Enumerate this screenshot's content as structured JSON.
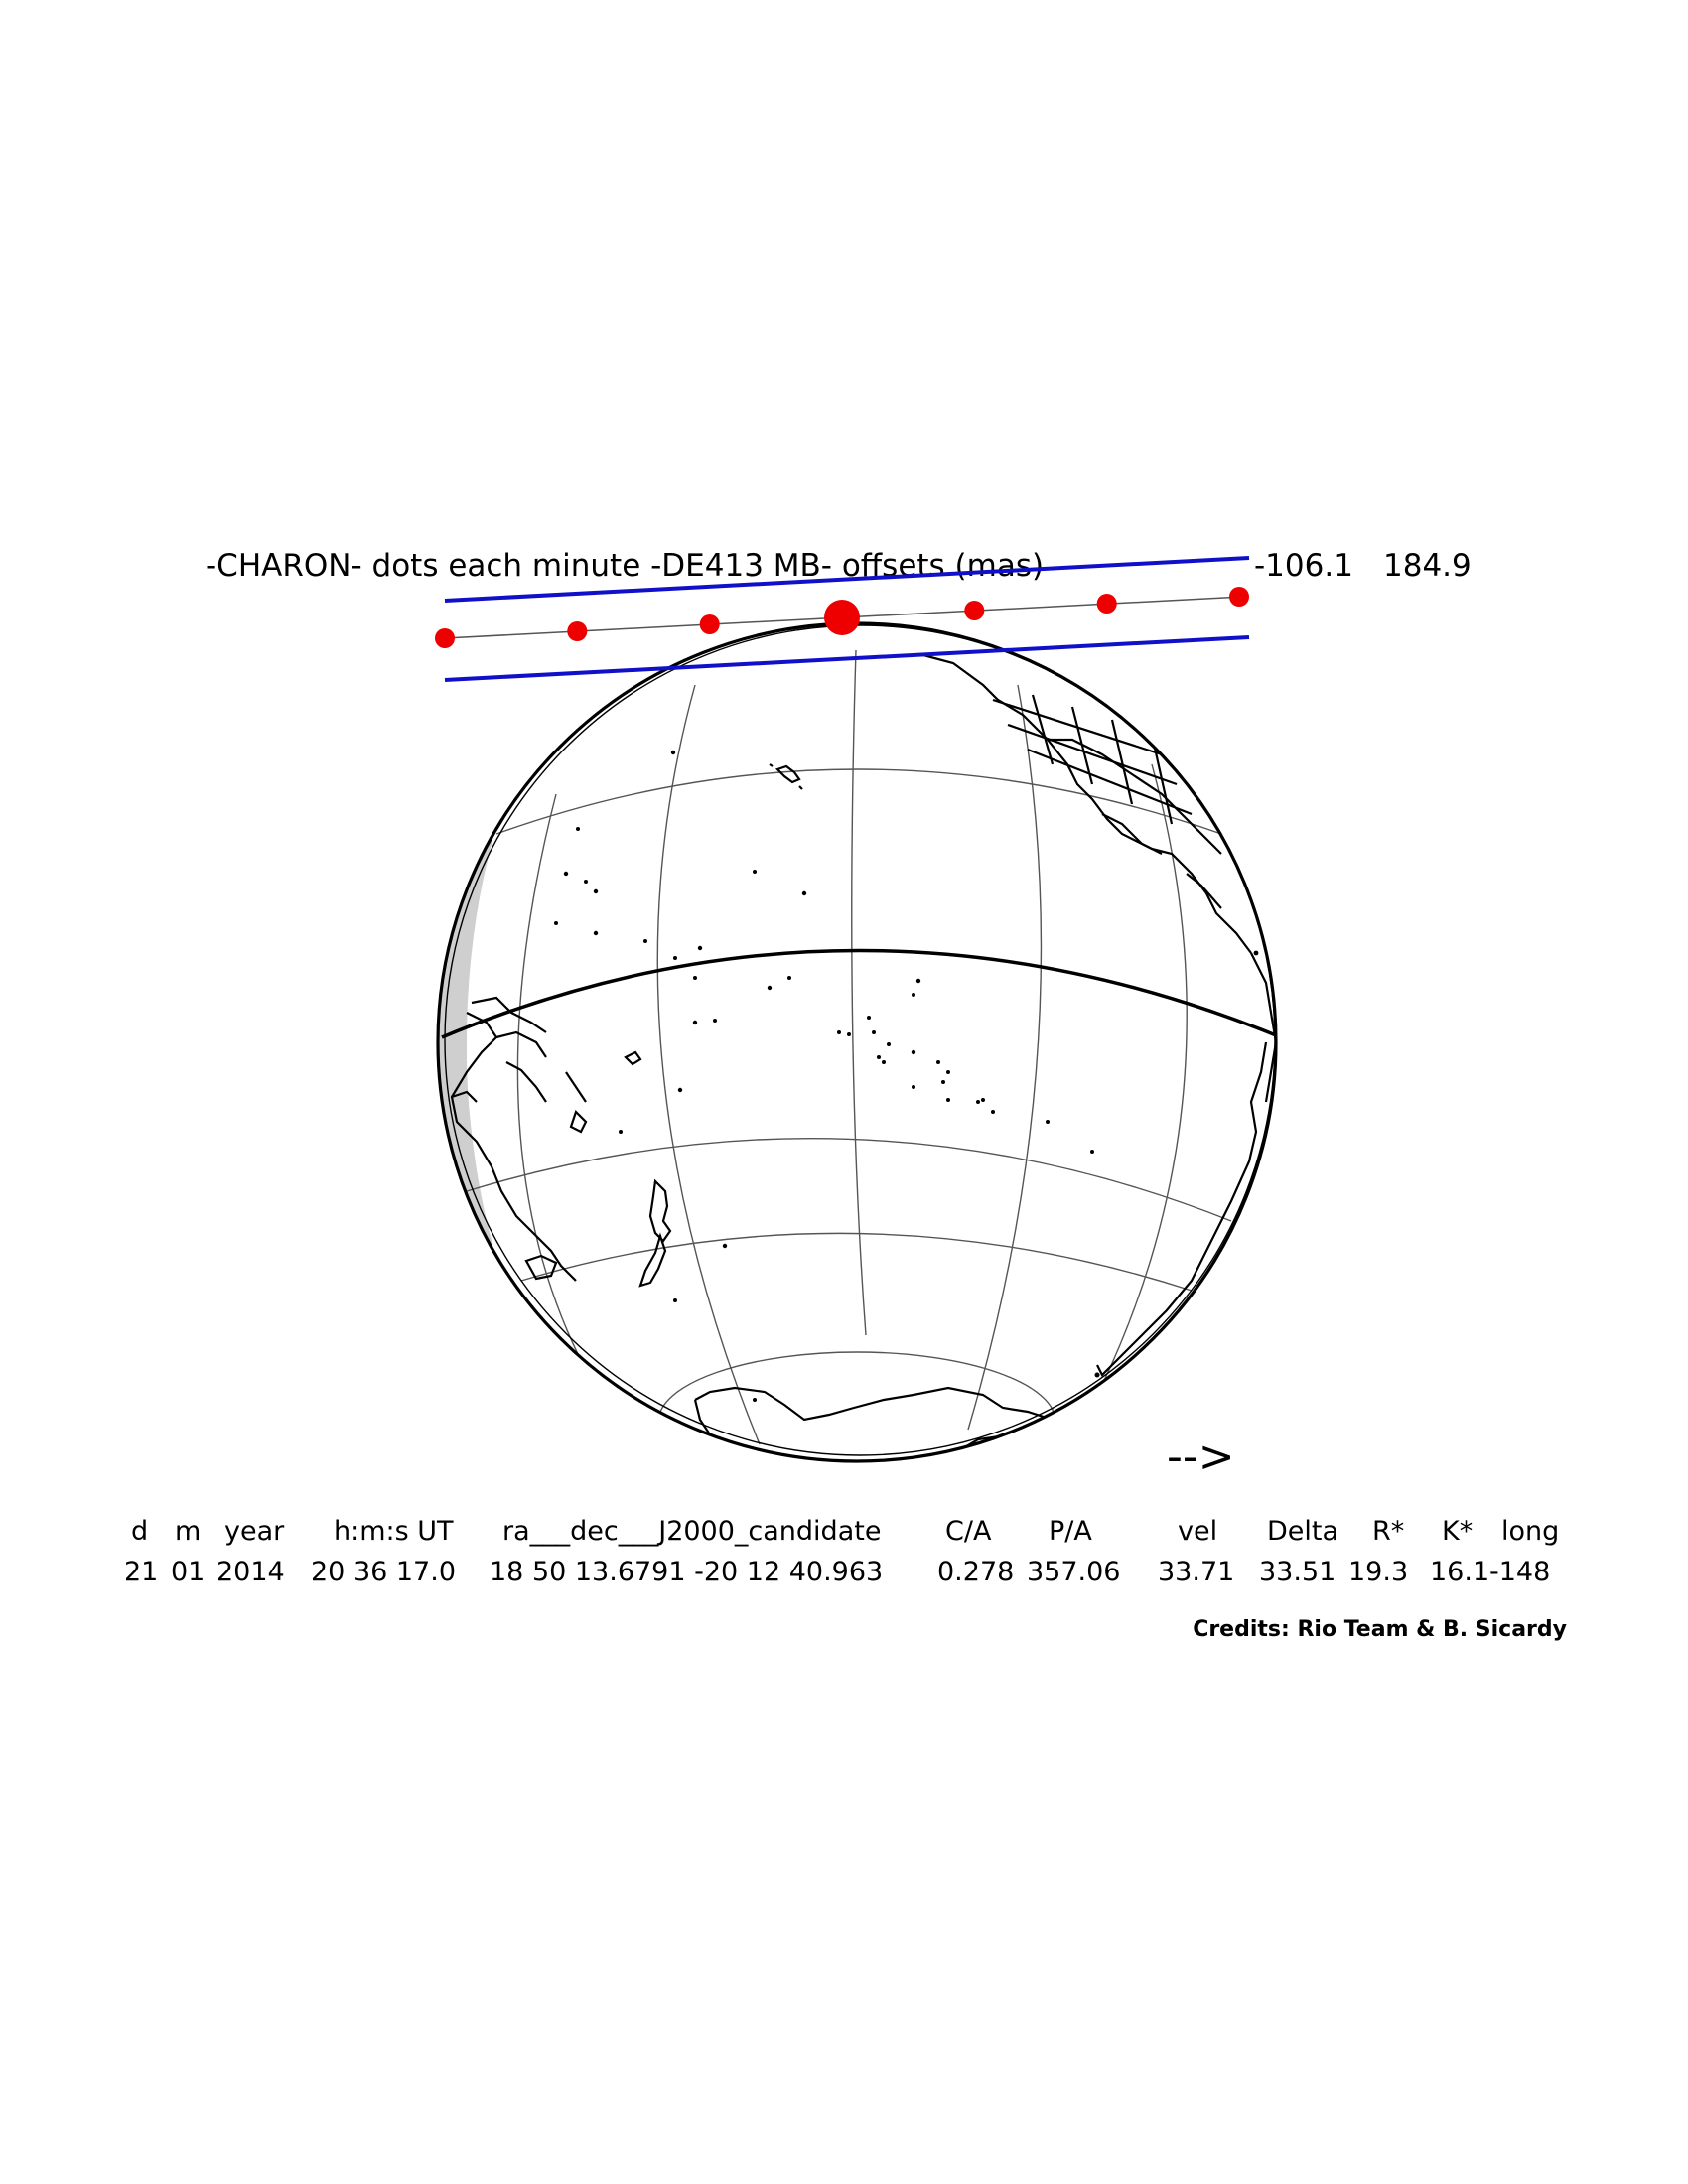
{
  "header": {
    "title": "-CHARON-  dots each minute  -DE413 MB-  offsets (mas)",
    "offset_ra": "-106.1",
    "offset_dec": "184.9"
  },
  "colors": {
    "path_limits": "#1010c8",
    "dots": "#ee0000",
    "coast": "#000000",
    "grid": "#555555",
    "night_shade": "#cccccc"
  },
  "track": {
    "dot_count": 7,
    "closest_approach_index": 3
  },
  "direction_arrow": "-->",
  "table": {
    "headers": [
      "d",
      "m",
      "year",
      "h:m:s UT",
      "ra___dec___J2000_candidate",
      "C/A",
      "P/A",
      "vel",
      "Delta",
      "R*",
      "K*",
      "long"
    ],
    "values": {
      "d": "21",
      "m": "01",
      "year": "2014",
      "hms": "20 36 17.0",
      "radec": "18 50 13.6791  -20 12 40.963",
      "ca": "0.278",
      "pa": "357.06",
      "vel": "33.71",
      "delta": "33.51",
      "rstar": "19.3",
      "kstar": "16.1",
      "long": "-148"
    }
  },
  "credits": "Credits: Rio Team & B. Sicardy"
}
